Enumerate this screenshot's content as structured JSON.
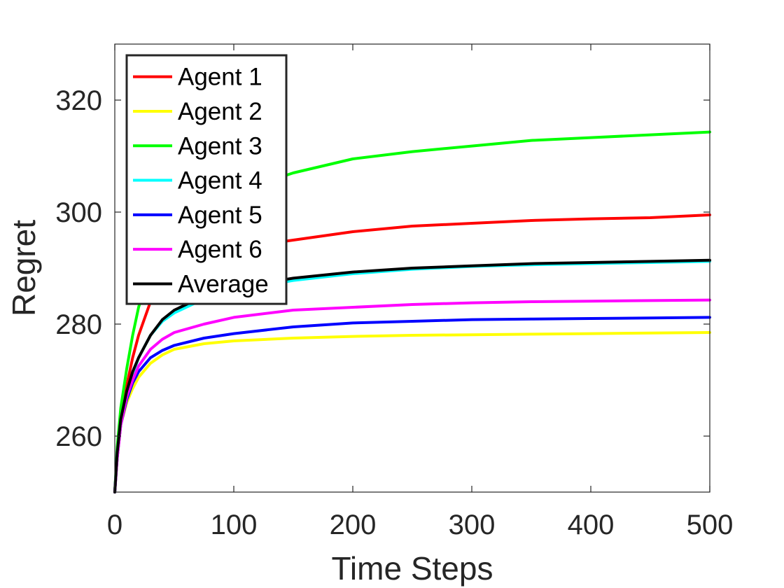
{
  "chart_data": {
    "type": "line",
    "xlabel": "Time Steps",
    "ylabel": "Regret",
    "xlim": [
      0,
      500
    ],
    "ylim": [
      250,
      330
    ],
    "xticks": [
      0,
      100,
      200,
      300,
      400,
      500
    ],
    "yticks": [
      260,
      280,
      300,
      320
    ],
    "xtick_labels": [
      "0",
      "100",
      "200",
      "300",
      "400",
      "500"
    ],
    "ytick_labels": [
      "260",
      "280",
      "300",
      "320"
    ],
    "grid": false,
    "legend_position": "top-left",
    "series": [
      {
        "name": "Agent 1",
        "color": "#ff0000",
        "x": [
          0,
          2,
          5,
          10,
          15,
          20,
          30,
          40,
          50,
          75,
          100,
          150,
          200,
          250,
          300,
          350,
          400,
          450,
          500
        ],
        "y": [
          250,
          257,
          263,
          269,
          274,
          278,
          284,
          287,
          289,
          292,
          293.5,
          295,
          296.5,
          297.5,
          298,
          298.5,
          298.8,
          299,
          299.5
        ]
      },
      {
        "name": "Agent 2",
        "color": "#ffff00",
        "x": [
          0,
          2,
          5,
          10,
          15,
          20,
          30,
          40,
          50,
          75,
          100,
          150,
          200,
          250,
          300,
          350,
          400,
          450,
          500
        ],
        "y": [
          250,
          256,
          262,
          266,
          268.5,
          270.5,
          273,
          274.5,
          275.5,
          276.5,
          277,
          277.5,
          277.8,
          278,
          278.1,
          278.2,
          278.3,
          278.4,
          278.5
        ]
      },
      {
        "name": "Agent 3",
        "color": "#00ff00",
        "x": [
          0,
          2,
          5,
          10,
          15,
          20,
          30,
          40,
          50,
          75,
          100,
          150,
          200,
          250,
          300,
          350,
          400,
          450,
          500
        ],
        "y": [
          250,
          258,
          265,
          272,
          278,
          283,
          290,
          294,
          297,
          301,
          303.5,
          307,
          309.5,
          310.8,
          311.8,
          312.8,
          313.3,
          313.8,
          314.3
        ]
      },
      {
        "name": "Agent 4",
        "color": "#00ffff",
        "x": [
          0,
          2,
          5,
          10,
          15,
          20,
          30,
          40,
          50,
          75,
          100,
          150,
          200,
          250,
          300,
          350,
          400,
          450,
          500
        ],
        "y": [
          250,
          257,
          262,
          267,
          271,
          274,
          278,
          280.5,
          282,
          284.5,
          286,
          287.8,
          289,
          289.8,
          290.3,
          290.6,
          290.8,
          291,
          291.2
        ]
      },
      {
        "name": "Agent 5",
        "color": "#0000ff",
        "x": [
          0,
          2,
          5,
          10,
          15,
          20,
          30,
          40,
          50,
          75,
          100,
          150,
          200,
          250,
          300,
          350,
          400,
          450,
          500
        ],
        "y": [
          250,
          256,
          262,
          266.5,
          269.5,
          271.5,
          274,
          275.3,
          276.2,
          277.5,
          278.3,
          279.5,
          280.2,
          280.5,
          280.8,
          280.9,
          281,
          281.1,
          281.2
        ]
      },
      {
        "name": "Agent 6",
        "color": "#ff00ff",
        "x": [
          0,
          2,
          5,
          10,
          15,
          20,
          30,
          40,
          50,
          75,
          100,
          150,
          200,
          250,
          300,
          350,
          400,
          450,
          500
        ],
        "y": [
          250,
          256,
          262,
          267,
          270,
          272.5,
          275.5,
          277.3,
          278.5,
          280,
          281.2,
          282.5,
          283,
          283.5,
          283.8,
          284,
          284.1,
          284.2,
          284.3
        ]
      },
      {
        "name": "Average",
        "color": "#000000",
        "x": [
          0,
          2,
          5,
          10,
          15,
          20,
          30,
          40,
          50,
          75,
          100,
          150,
          200,
          250,
          300,
          350,
          400,
          450,
          500
        ],
        "y": [
          250,
          257,
          263,
          268,
          271.5,
          274,
          278,
          280.8,
          282.5,
          285,
          286.5,
          288.2,
          289.3,
          290,
          290.4,
          290.8,
          291,
          291.2,
          291.4
        ]
      }
    ]
  }
}
